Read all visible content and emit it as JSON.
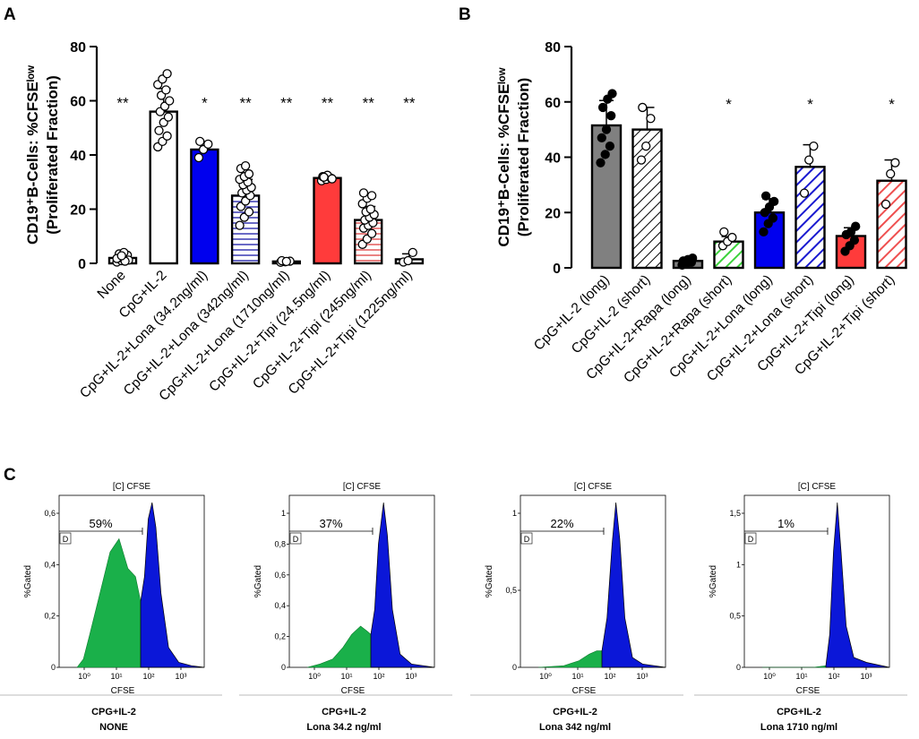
{
  "panels": {
    "a": "A",
    "b": "B",
    "c": "C"
  },
  "chart_data": [
    {
      "type": "bar",
      "panel": "A",
      "ylabel_lines": [
        "CD19⁺B-Cells: %CFSEˡᵒʷ",
        "(Proliferated Fraction)"
      ],
      "ylim": [
        0,
        80
      ],
      "yticks": [
        0,
        20,
        40,
        60,
        80
      ],
      "categories": [
        "None",
        "CpG+IL-2",
        "CpG+IL-2+Lona (34.2ng/ml)",
        "CpG+IL-2+Lona (342ng/ml)",
        "CpG+IL-2+Lona (1710ng/ml)",
        "CpG+IL-2+Tipi  (24.5ng/ml)",
        "CpG+IL-2+Tipi  (245ng/ml)",
        "CpG+IL-2+Tipi (1225ng/ml)"
      ],
      "values": [
        2,
        56,
        42,
        25,
        0.7,
        31.5,
        16,
        1.5
      ],
      "errors": [
        1.2,
        8.5,
        3,
        6,
        0.3,
        1,
        5,
        2
      ],
      "significance": [
        "**",
        "",
        "*",
        "**",
        "**",
        "**",
        "**",
        "**"
      ],
      "fills": [
        "#ffffff",
        "#ffffff",
        "#0000ee",
        "#ffffff",
        "#ffffff",
        "#ff3b3b",
        "#ffffff",
        "#ffffff"
      ],
      "patterns": [
        "none",
        "none",
        "none",
        "hlines-blue",
        "none",
        "none",
        "hlines-red",
        "none"
      ],
      "points": [
        [
          0.5,
          1,
          1.5,
          2,
          2.5,
          3,
          3.5,
          4,
          1.2,
          2.2,
          0.8,
          1.8,
          2.8
        ],
        [
          43,
          45,
          47,
          49,
          52,
          54,
          56,
          58,
          60,
          62,
          64,
          66,
          68,
          70
        ],
        [
          39,
          42,
          44,
          45
        ],
        [
          14,
          17,
          19,
          21,
          23,
          25,
          26,
          27,
          28,
          29,
          30,
          31,
          32,
          33,
          35,
          36
        ],
        [
          0.4,
          0.6,
          0.8,
          1,
          0.7
        ],
        [
          30.5,
          31,
          31.5,
          32,
          32.5,
          31.2,
          31.8
        ],
        [
          7,
          9,
          11,
          13,
          14,
          15,
          16,
          17,
          18,
          19,
          20,
          22,
          24,
          25,
          26
        ],
        [
          0.5,
          1,
          4
        ]
      ]
    },
    {
      "type": "bar",
      "panel": "B",
      "ylabel_lines": [
        "CD19⁺B-Cells: %CFSEˡᵒʷ",
        "(Proliferated Fraction)"
      ],
      "ylim": [
        0,
        80
      ],
      "yticks": [
        0,
        20,
        40,
        60,
        80
      ],
      "categories": [
        "CpG+IL-2 (long)",
        "CpG+IL-2 (short)",
        "CpG+IL-2+Rapa (long)",
        "CpG+IL-2+Rapa (short)",
        "CpG+IL-2+Lona (long)",
        "CpG+IL-2+Lona (short)",
        "CpG+IL-2+Tipi (long)",
        "CpG+IL-2+Tipi (short)"
      ],
      "values": [
        51.5,
        50,
        2.5,
        9.5,
        20,
        36.5,
        11.5,
        31.5
      ],
      "errors": [
        9,
        8,
        1,
        1.8,
        5,
        8,
        3,
        7.5
      ],
      "significance": [
        "",
        "",
        "",
        "*",
        "",
        "*",
        "",
        "*"
      ],
      "fills": [
        "#808080",
        "#ffffff",
        "#808080",
        "#ffffff",
        "#0000ee",
        "#ffffff",
        "#ff3b3b",
        "#ffffff"
      ],
      "patterns": [
        "none",
        "diag-black",
        "none",
        "diag-green",
        "none",
        "diag-blue",
        "none",
        "diag-red"
      ],
      "filled_points": [
        true,
        false,
        true,
        false,
        true,
        false,
        true,
        false
      ],
      "points": [
        [
          38,
          41,
          44,
          47,
          50,
          55,
          58,
          61,
          63
        ],
        [
          39,
          44,
          54,
          58
        ],
        [
          1,
          1.5,
          2,
          2.5,
          3,
          3.5,
          2.2
        ],
        [
          8,
          9.5,
          11,
          13
        ],
        [
          13,
          16,
          18,
          20,
          22,
          24,
          26
        ],
        [
          27,
          39,
          44
        ],
        [
          6,
          8,
          10,
          12,
          13,
          15
        ],
        [
          23,
          34,
          38
        ]
      ]
    }
  ],
  "histograms": [
    {
      "title": "[C] CFSE",
      "percent": "59%",
      "gate": "D",
      "ylabel": "%Gated",
      "xlabel": "CFSE",
      "ymax_label": "0,6",
      "yticks": [
        "0",
        "0,2",
        "0,4",
        "0,6"
      ],
      "xticks": [
        "10⁰",
        "10¹",
        "10²",
        "10³"
      ],
      "caption1": "CPG+IL-2",
      "caption2": "NONE"
    },
    {
      "title": "[C] CFSE",
      "percent": "37%",
      "gate": "D",
      "ylabel": "%Gated",
      "xlabel": "CFSE",
      "ymax_label": "1",
      "yticks": [
        "0",
        "0,2",
        "0,4",
        "0,6",
        "0,8",
        "1"
      ],
      "xticks": [
        "10⁰",
        "10¹",
        "10²",
        "10³"
      ],
      "caption1": "CPG+IL-2",
      "caption2": "Lona 34.2 ng/ml"
    },
    {
      "title": "[C] CFSE",
      "percent": "22%",
      "gate": "D",
      "ylabel": "%Gated",
      "xlabel": "CFSE",
      "ymax_label": "1",
      "yticks": [
        "0",
        "0,5",
        "1"
      ],
      "xticks": [
        "10⁰",
        "10¹",
        "10²",
        "10³"
      ],
      "caption1": "CPG+IL-2",
      "caption2": "Lona 342 ng/ml"
    },
    {
      "title": "[C] CFSE",
      "percent": "1%",
      "gate": "D",
      "ylabel": "%Gated",
      "xlabel": "CFSE",
      "ymax_label": "1,5",
      "yticks": [
        "0",
        "0,5",
        "1",
        "1,5"
      ],
      "xticks": [
        "10⁰",
        "10¹",
        "10²",
        "10³"
      ],
      "caption1": "CPG+IL-2",
      "caption2": "Lona 1710 ng/ml"
    }
  ],
  "histogram_shapes": [
    {
      "green": [
        [
          0,
          0
        ],
        [
          0.05,
          0.05
        ],
        [
          0.1,
          0.2
        ],
        [
          0.18,
          0.45
        ],
        [
          0.26,
          0.7
        ],
        [
          0.33,
          0.78
        ],
        [
          0.4,
          0.6
        ],
        [
          0.46,
          0.55
        ],
        [
          0.5,
          0.4
        ]
      ],
      "blue": [
        [
          0.5,
          0.4
        ],
        [
          0.53,
          0.55
        ],
        [
          0.56,
          0.9
        ],
        [
          0.59,
          1.0
        ],
        [
          0.62,
          0.85
        ],
        [
          0.66,
          0.45
        ],
        [
          0.72,
          0.12
        ],
        [
          0.8,
          0.03
        ],
        [
          0.9,
          0.01
        ],
        [
          1,
          0
        ]
      ],
      "split": 0.5
    },
    {
      "green": [
        [
          0,
          0
        ],
        [
          0.1,
          0.02
        ],
        [
          0.2,
          0.05
        ],
        [
          0.28,
          0.12
        ],
        [
          0.35,
          0.2
        ],
        [
          0.42,
          0.25
        ],
        [
          0.47,
          0.22
        ],
        [
          0.5,
          0.2
        ]
      ],
      "blue": [
        [
          0.5,
          0.2
        ],
        [
          0.53,
          0.35
        ],
        [
          0.56,
          0.75
        ],
        [
          0.6,
          1.0
        ],
        [
          0.63,
          0.8
        ],
        [
          0.67,
          0.35
        ],
        [
          0.73,
          0.08
        ],
        [
          0.82,
          0.02
        ],
        [
          1,
          0
        ]
      ],
      "split": 0.5
    },
    {
      "green": [
        [
          0,
          0
        ],
        [
          0.2,
          0.01
        ],
        [
          0.32,
          0.04
        ],
        [
          0.4,
          0.08
        ],
        [
          0.46,
          0.1
        ],
        [
          0.5,
          0.1
        ]
      ],
      "blue": [
        [
          0.5,
          0.1
        ],
        [
          0.54,
          0.3
        ],
        [
          0.58,
          0.75
        ],
        [
          0.61,
          1.0
        ],
        [
          0.64,
          0.78
        ],
        [
          0.68,
          0.3
        ],
        [
          0.74,
          0.06
        ],
        [
          0.82,
          0.02
        ],
        [
          1,
          0
        ]
      ],
      "split": 0.5
    },
    {
      "green": [
        [
          0,
          0
        ],
        [
          0.4,
          0
        ],
        [
          0.5,
          0.01
        ]
      ],
      "blue": [
        [
          0.5,
          0.01
        ],
        [
          0.53,
          0.2
        ],
        [
          0.56,
          0.7
        ],
        [
          0.59,
          1.0
        ],
        [
          0.62,
          0.7
        ],
        [
          0.66,
          0.25
        ],
        [
          0.72,
          0.06
        ],
        [
          0.82,
          0.03
        ],
        [
          1,
          0
        ]
      ],
      "split": 0.5
    }
  ]
}
